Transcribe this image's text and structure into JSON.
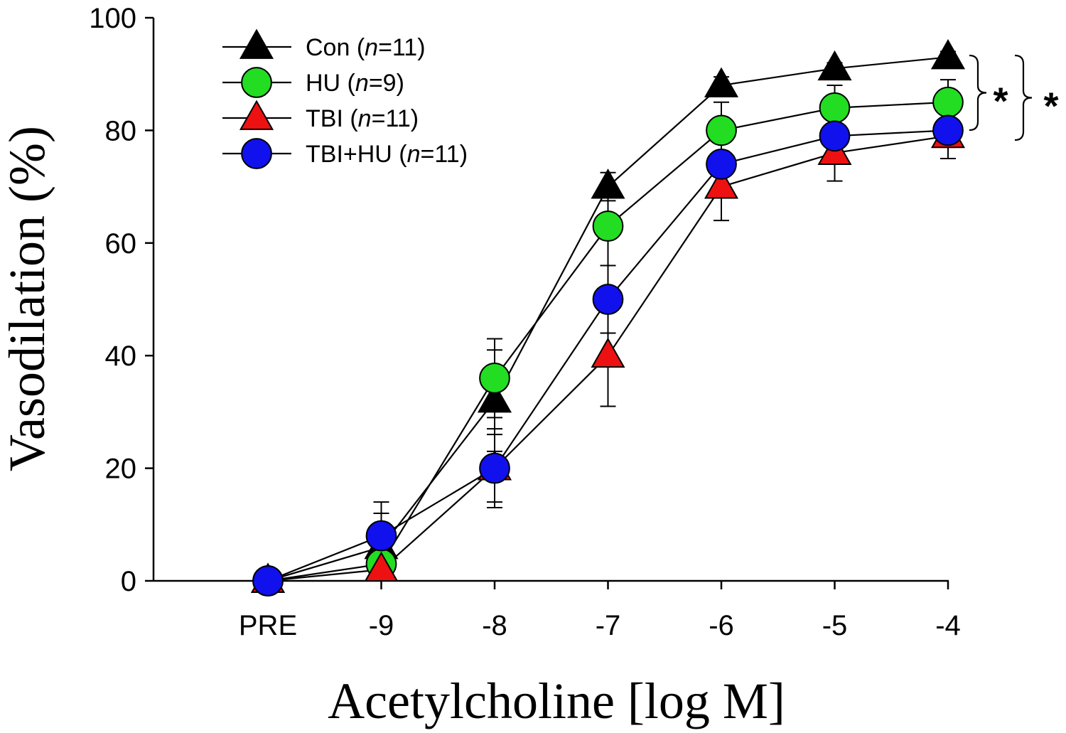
{
  "chart_data": {
    "type": "line",
    "xlabel": "Acetylcholine [log M]",
    "ylabel": "Vasodilation (%)",
    "categories": [
      "PRE",
      "-9",
      "-8",
      "-7",
      "-6",
      "-5",
      "-4"
    ],
    "ylim": [
      0,
      100
    ],
    "yticks": [
      0,
      20,
      40,
      60,
      80,
      100
    ],
    "grid": false,
    "legend_position": "top-left",
    "series": [
      {
        "name_main": "Con (",
        "name_n": "n",
        "name_rest": "=11)",
        "marker": "triangle",
        "color": "#000000",
        "values": [
          0,
          6,
          32,
          70,
          88,
          91,
          93
        ],
        "errors": [
          0,
          6,
          9,
          2.5,
          1.5,
          1,
          1
        ]
      },
      {
        "name_main": "HU (",
        "name_n": "n",
        "name_rest": "=9)",
        "marker": "circle",
        "color": "#22dd22",
        "values": [
          0,
          3,
          36,
          63,
          80,
          84,
          85
        ],
        "errors": [
          0,
          2,
          7,
          7,
          5,
          4,
          4
        ]
      },
      {
        "name_main": "TBI (",
        "name_n": "n",
        "name_rest": "=11)",
        "marker": "triangle",
        "color": "#ee1111",
        "values": [
          0,
          2,
          20,
          40,
          70,
          76,
          79
        ],
        "errors": [
          0,
          2,
          6,
          9,
          6,
          5,
          4
        ]
      },
      {
        "name_main": "TBI+HU (",
        "name_n": "n",
        "name_rest": "=11)",
        "marker": "circle",
        "color": "#1111ee",
        "values": [
          0,
          8,
          20,
          50,
          74,
          79,
          80
        ],
        "errors": [
          0,
          6,
          7,
          6,
          2,
          3,
          3
        ]
      }
    ],
    "annotations": [
      "*",
      "*"
    ]
  }
}
